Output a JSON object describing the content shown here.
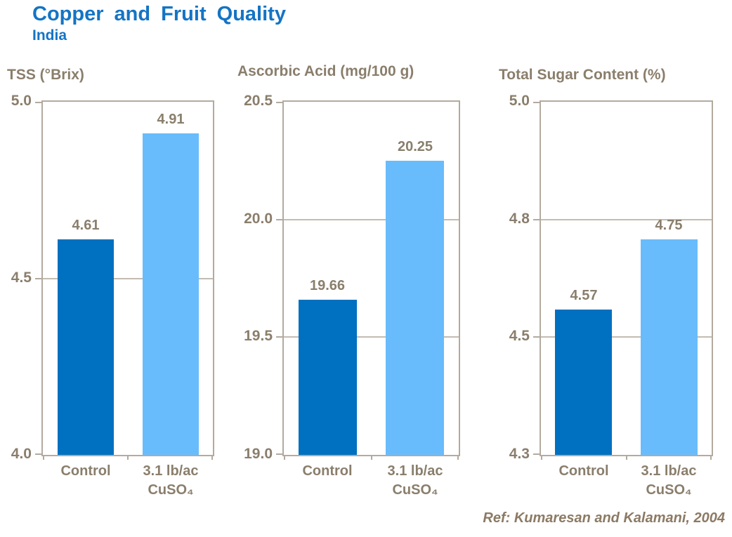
{
  "page": {
    "title": "Copper and Fruit Quality",
    "subtitle": "India",
    "reference": "Ref: Kumaresan and Kalamani, 2004"
  },
  "colors": {
    "title_blue": "#1474C4",
    "bar_dark_blue": "#0070C0",
    "bar_light_blue": "#68BCFC",
    "axis_taupe": "#B3AA9F",
    "gridline_taupe": "#C4BBB1",
    "text_taupe": "#8A7E6C",
    "reference_brown": "#8C7A64"
  },
  "chart_data": [
    {
      "type": "bar",
      "title": "TSS (°Brix)",
      "ylabel": "TSS (°Brix)",
      "xlabel": "",
      "categories": [
        "Control",
        "3.1 lb/ac CuSO₄"
      ],
      "category_label_lines": [
        [
          "Control"
        ],
        [
          "3.1 lb/ac",
          "CuSO₄"
        ]
      ],
      "values": [
        4.61,
        4.91
      ],
      "value_labels": [
        "4.61",
        "4.91"
      ],
      "bar_colors": [
        "#0070C0",
        "#68BCFC"
      ],
      "ylim": [
        4.0,
        5.0
      ],
      "yticks": [
        5.0,
        4.5,
        4.0
      ],
      "ytick_labels": [
        "5.0",
        "4.5",
        "4.0"
      ],
      "grid": "horizontal interior gridlines",
      "legend": "none"
    },
    {
      "type": "bar",
      "title": "Ascorbic Acid (mg/100 g)",
      "ylabel": "Ascorbic Acid (mg/100 g)",
      "xlabel": "",
      "categories": [
        "Control",
        "3.1 lb/ac CuSO₄"
      ],
      "category_label_lines": [
        [
          "Control"
        ],
        [
          "3.1 lb/ac",
          "CuSO₄"
        ]
      ],
      "values": [
        19.66,
        20.25
      ],
      "value_labels": [
        "19.66",
        "20.25"
      ],
      "bar_colors": [
        "#0070C0",
        "#68BCFC"
      ],
      "ylim": [
        19.0,
        20.5
      ],
      "yticks": [
        20.5,
        20.0,
        19.5,
        19.0
      ],
      "ytick_labels": [
        "20.5",
        "20.0",
        "19.5",
        "19.0"
      ],
      "grid": "horizontal interior gridlines",
      "legend": "none"
    },
    {
      "type": "bar",
      "title": "Total Sugar Content (%)",
      "ylabel": "Total Sugar Content (%)",
      "xlabel": "",
      "categories": [
        "Control",
        "3.1 lb/ac CuSO₄"
      ],
      "category_label_lines": [
        [
          "Control"
        ],
        [
          "3.1 lb/ac",
          "CuSO₄"
        ]
      ],
      "values": [
        4.57,
        4.75
      ],
      "value_labels": [
        "4.57",
        "4.75"
      ],
      "bar_colors": [
        "#0070C0",
        "#68BCFC"
      ],
      "ylim": [
        4.3,
        5.0
      ],
      "yticks": [
        5.0,
        4.8,
        4.5,
        4.3
      ],
      "ytick_labels": [
        "5.0",
        "4.8",
        "4.5",
        "4.3"
      ],
      "grid": "horizontal interior gridlines",
      "legend": "none"
    }
  ]
}
